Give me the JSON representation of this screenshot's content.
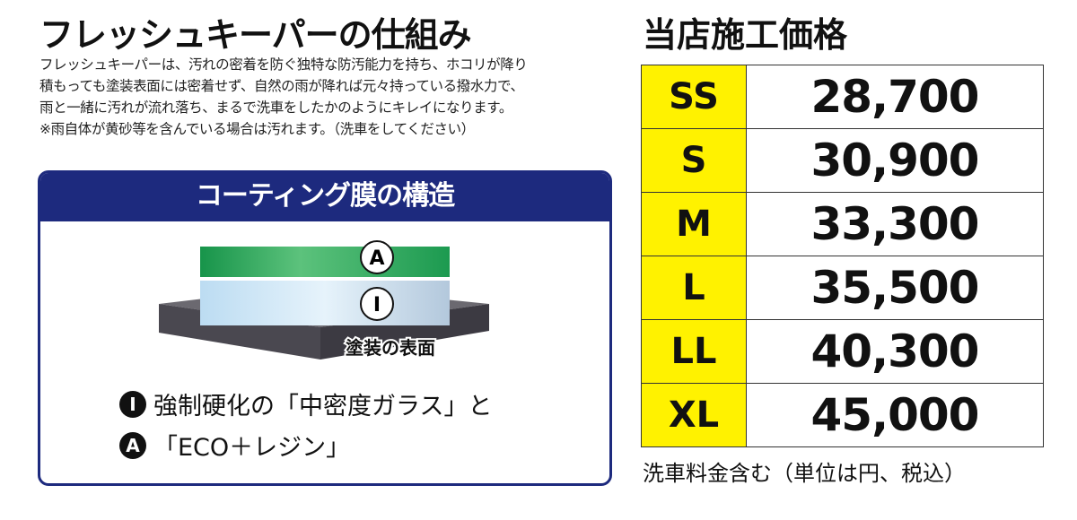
{
  "left": {
    "title": "フレッシュキーパーの仕組み",
    "description": [
      "フレッシュキーパーは、汚れの密着を防ぐ独特な防汚能力を持ち、ホコリが降り",
      "積もっても塗装表面には密着せず、自然の雨が降れば元々持っている撥水力で、",
      "雨と一緒に汚れが流れ落ち、まるで洗車をしたかのようにキレイになります。",
      "※雨自体が黄砂等を含んでいる場合は汚れます。（洗車をしてください）"
    ],
    "structure": {
      "heading": "コーティング膜の構造",
      "layer_a": "A",
      "layer_i": "I",
      "surface_label": "塗装の表面",
      "legend": [
        {
          "mark": "I",
          "text": "強制硬化の「中密度ガラス」と"
        },
        {
          "mark": "A",
          "text": "「ECO＋レジン」"
        }
      ]
    }
  },
  "price": {
    "title": "当店施工価格",
    "rows": [
      {
        "size": "SS",
        "price": "28,700"
      },
      {
        "size": "S",
        "price": "30,900"
      },
      {
        "size": "M",
        "price": "33,300"
      },
      {
        "size": "L",
        "price": "35,500"
      },
      {
        "size": "LL",
        "price": "40,300"
      },
      {
        "size": "XL",
        "price": "45,000"
      }
    ],
    "note": "洗車料金含む（単位は円、税込）"
  },
  "colors": {
    "navy": "#1d2a7e",
    "yellow": "#fff200",
    "green": "#1fa34a",
    "slab": "#4a4850"
  }
}
